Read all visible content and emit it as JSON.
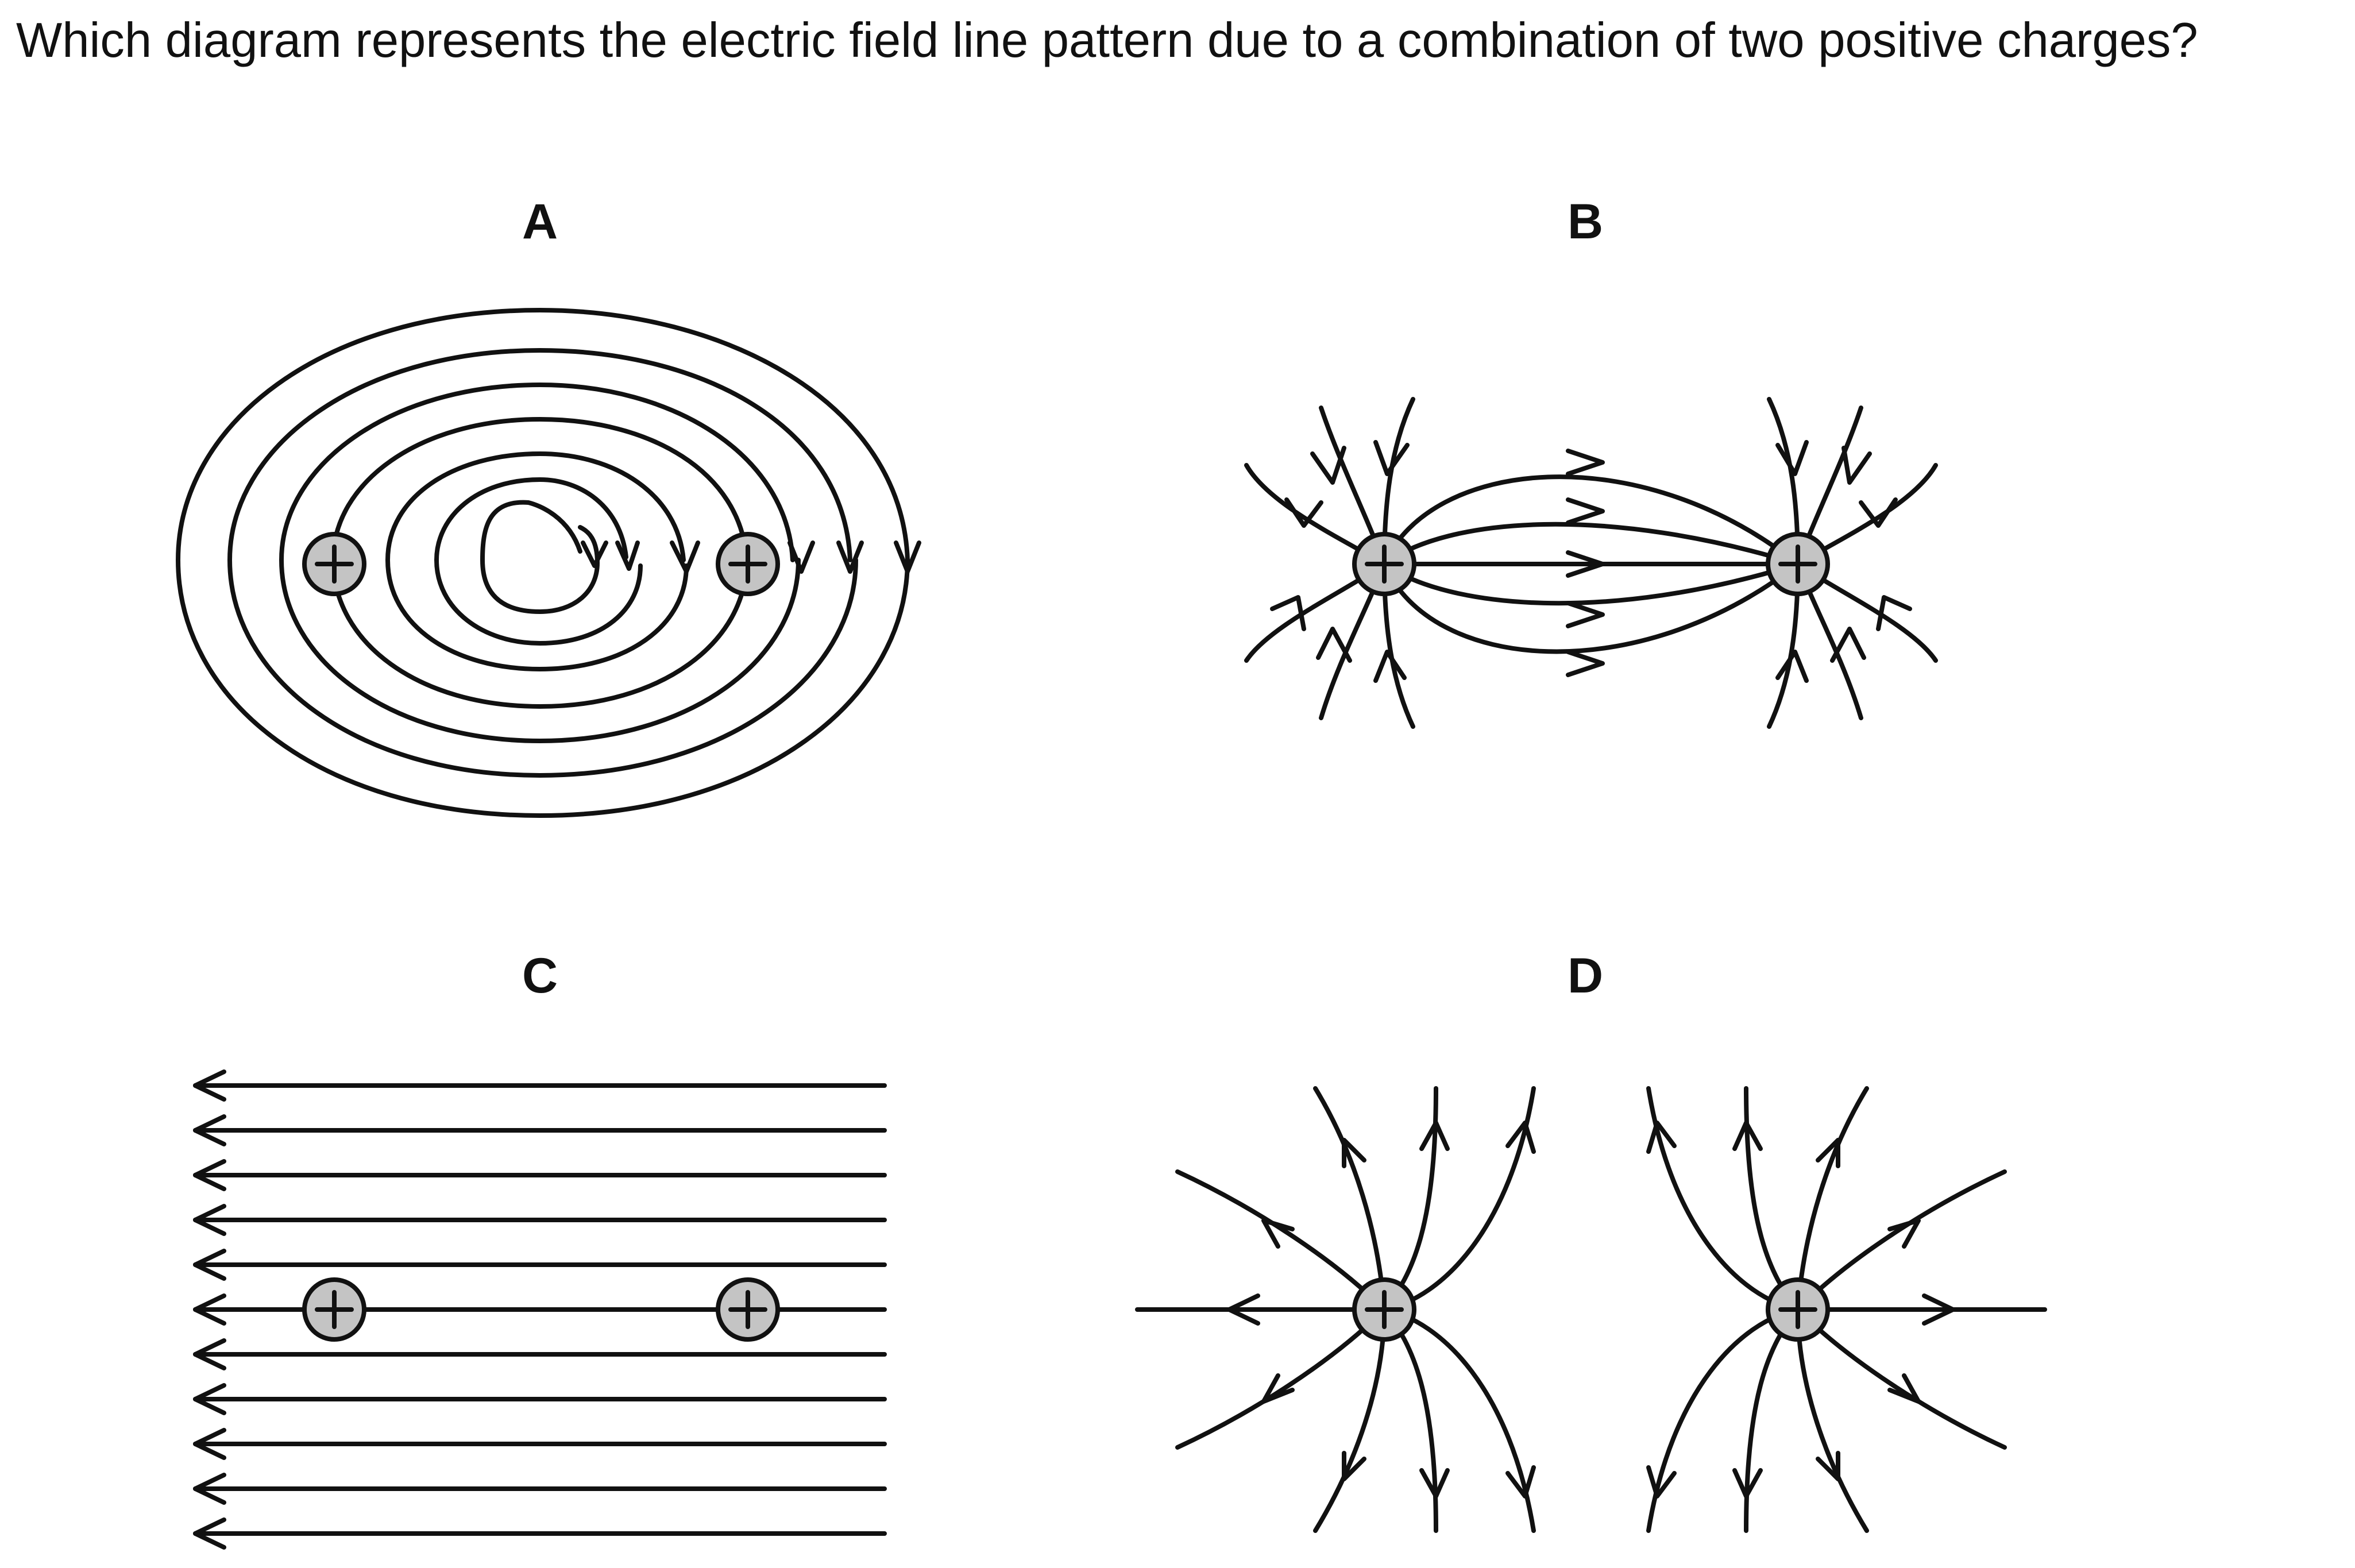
{
  "question": {
    "text": "Which diagram represents the electric field line pattern due to a combination of two positive charges?"
  },
  "options": [
    {
      "id": "A",
      "label": "A"
    },
    {
      "id": "B",
      "label": "B"
    },
    {
      "id": "C",
      "label": "C"
    },
    {
      "id": "D",
      "label": "D"
    }
  ],
  "charge_sign": "+",
  "colors": {
    "line": "#111111",
    "charge_fill": "#c4c4c4",
    "background": "#ffffff"
  }
}
